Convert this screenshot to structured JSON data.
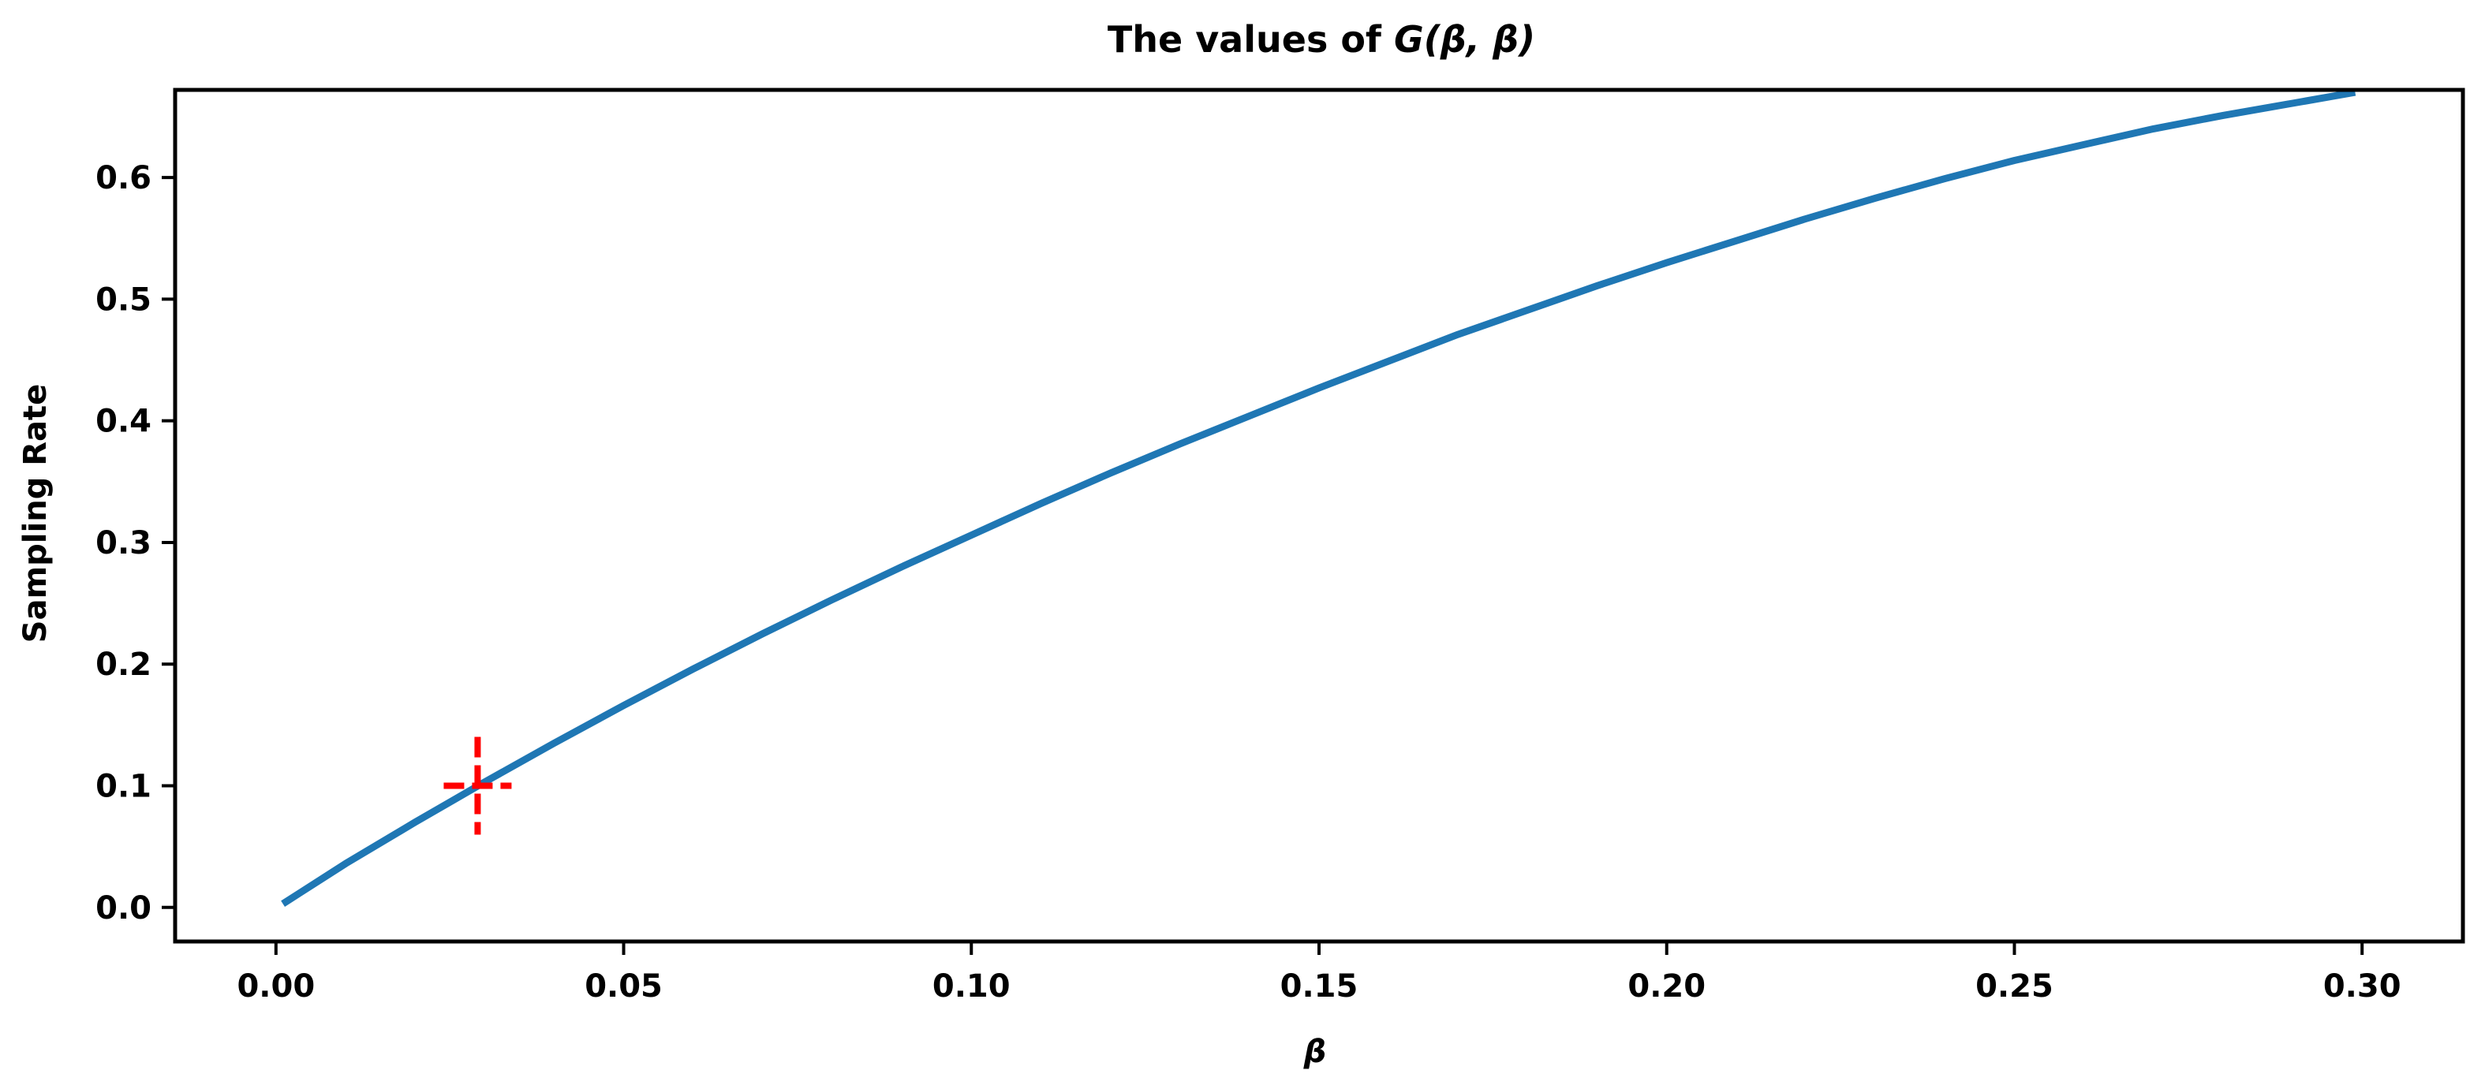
{
  "chart_data": {
    "type": "line",
    "title": {
      "prefix": "The values of ",
      "math": "G(β, β)"
    },
    "xlabel": "β",
    "ylabel": "Sampling Rate",
    "xlim": [
      -0.0145,
      0.3145
    ],
    "ylim": [
      -0.028,
      0.672
    ],
    "x_ticks": [
      0.0,
      0.05,
      0.1,
      0.15,
      0.2,
      0.25,
      0.3
    ],
    "x_tick_labels": [
      "0.00",
      "0.05",
      "0.10",
      "0.15",
      "0.20",
      "0.25",
      "0.30"
    ],
    "y_ticks": [
      0.0,
      0.1,
      0.2,
      0.3,
      0.4,
      0.5,
      0.6
    ],
    "y_tick_labels": [
      "0.0",
      "0.1",
      "0.2",
      "0.3",
      "0.4",
      "0.5",
      "0.6"
    ],
    "grid": false,
    "series": [
      {
        "color": "#1f77b4",
        "x": [
          0.001,
          0.01,
          0.02,
          0.03,
          0.04,
          0.05,
          0.06,
          0.07,
          0.08,
          0.09,
          0.1,
          0.11,
          0.12,
          0.13,
          0.14,
          0.15,
          0.16,
          0.17,
          0.18,
          0.19,
          0.2,
          0.21,
          0.22,
          0.23,
          0.24,
          0.25,
          0.26,
          0.27,
          0.28,
          0.29,
          0.299
        ],
        "y": [
          0.003,
          0.036,
          0.07,
          0.103,
          0.135,
          0.166,
          0.196,
          0.225,
          0.253,
          0.28,
          0.306,
          0.332,
          0.357,
          0.381,
          0.404,
          0.427,
          0.449,
          0.471,
          0.491,
          0.511,
          0.53,
          0.548,
          0.566,
          0.583,
          0.599,
          0.614,
          0.627,
          0.64,
          0.651,
          0.661,
          0.67
        ]
      }
    ],
    "marker": {
      "x": 0.029,
      "y": 0.1,
      "style": "plus",
      "color": "#ff0000"
    }
  }
}
